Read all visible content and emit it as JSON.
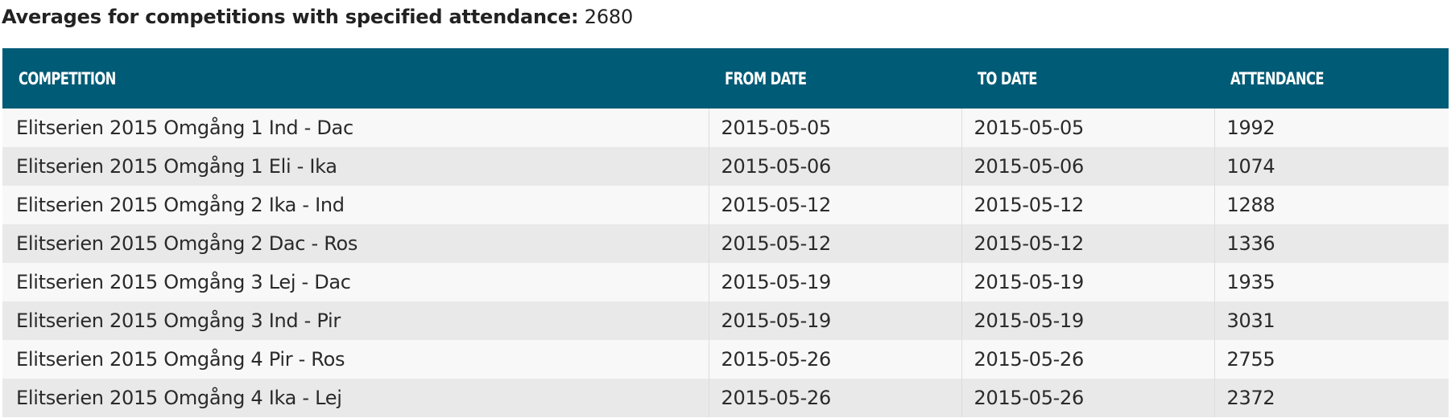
{
  "summary": {
    "label": "Averages for competitions with specified attendance:",
    "value": "2680"
  },
  "table": {
    "headers": [
      "COMPETITION",
      "FROM DATE",
      "TO DATE",
      "ATTENDANCE"
    ],
    "rows": [
      [
        "Elitserien 2015 Omgång 1 Ind - Dac",
        "2015-05-05",
        "2015-05-05",
        "1992"
      ],
      [
        "Elitserien 2015 Omgång 1 Eli - Ika",
        "2015-05-06",
        "2015-05-06",
        "1074"
      ],
      [
        "Elitserien 2015 Omgång 2 Ika - Ind",
        "2015-05-12",
        "2015-05-12",
        "1288"
      ],
      [
        "Elitserien 2015 Omgång 2 Dac - Ros",
        "2015-05-12",
        "2015-05-12",
        "1336"
      ],
      [
        "Elitserien 2015 Omgång 3 Lej - Dac",
        "2015-05-19",
        "2015-05-19",
        "1935"
      ],
      [
        "Elitserien 2015 Omgång 3 Ind - Pir",
        "2015-05-19",
        "2015-05-19",
        "3031"
      ],
      [
        "Elitserien 2015 Omgång 4 Pir - Ros",
        "2015-05-26",
        "2015-05-26",
        "2755"
      ],
      [
        "Elitserien 2015 Omgång 4 Ika - Lej",
        "2015-05-26",
        "2015-05-26",
        "2372"
      ]
    ]
  },
  "colors": {
    "header_bg": "#005b76",
    "header_text": "#ffffff",
    "row_odd": "#f8f8f8",
    "row_even": "#e9e9e9"
  }
}
